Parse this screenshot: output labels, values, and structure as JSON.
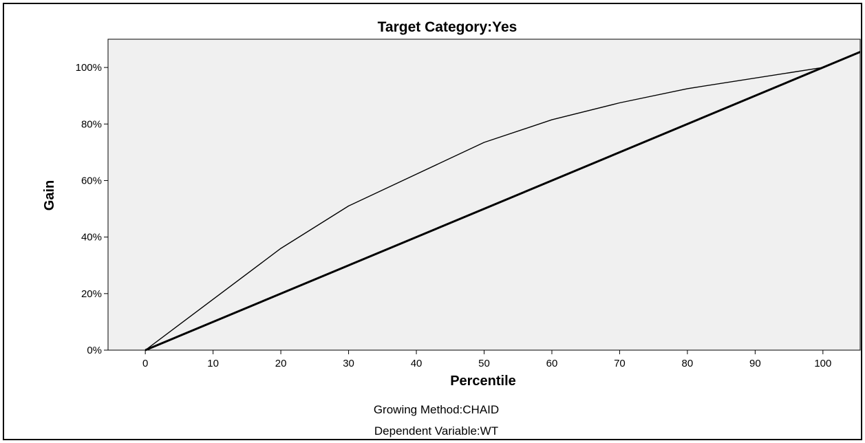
{
  "chart_data": {
    "type": "line",
    "title": "Target Category:Yes",
    "xlabel": "Percentile",
    "ylabel": "Gain",
    "xlim": [
      -5.5,
      105.5
    ],
    "ylim": [
      0,
      110
    ],
    "x_ticks": [
      0,
      10,
      20,
      30,
      40,
      50,
      60,
      70,
      80,
      90,
      100
    ],
    "y_ticks": [
      0,
      20,
      40,
      60,
      80,
      100
    ],
    "y_tick_labels": [
      "0%",
      "20%",
      "40%",
      "60%",
      "80%",
      "100%"
    ],
    "grid": false,
    "series": [
      {
        "style": "thin",
        "x": [
          0,
          20,
          30,
          50,
          60,
          70,
          80,
          100
        ],
        "y": [
          0,
          36,
          51,
          73.5,
          81.5,
          87.5,
          92.5,
          100
        ]
      },
      {
        "style": "thick",
        "x": [
          0,
          105.5
        ],
        "y": [
          0,
          105.5
        ]
      }
    ],
    "footnotes": [
      "Growing Method:CHAID",
      "Dependent Variable:WT"
    ],
    "colors": {
      "plot_background": "#f0f0f0",
      "line": "#000000"
    }
  }
}
